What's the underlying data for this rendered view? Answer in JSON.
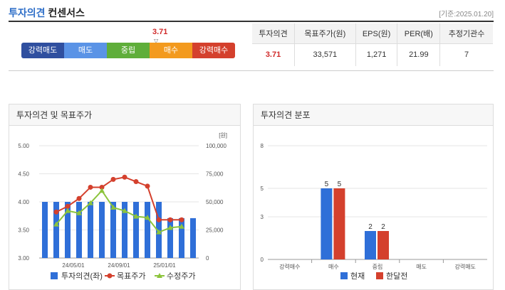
{
  "header": {
    "title_blue": "투자의견",
    "title_rest": "컨센서스",
    "date": "[기준:2025.01.20]"
  },
  "scale": {
    "value": "3.71",
    "pointer": "▽",
    "segments": [
      {
        "label": "강력매도",
        "color": "#2f4f9f"
      },
      {
        "label": "매도",
        "color": "#5a93e6"
      },
      {
        "label": "중립",
        "color": "#5fae3a"
      },
      {
        "label": "매수",
        "color": "#f39a1e"
      },
      {
        "label": "강력매수",
        "color": "#d4402d"
      }
    ]
  },
  "consensus_table": {
    "headers": [
      "투자의견",
      "목표주가(원)",
      "EPS(원)",
      "PER(배)",
      "추정기관수"
    ],
    "values": [
      "3.71",
      "33,571",
      "1,271",
      "21.99",
      "7"
    ]
  },
  "panels": {
    "left_title": "투자의견 및 목표주가",
    "right_title": "투자의견 분포"
  },
  "chart_data": [
    {
      "type": "bar",
      "left_axis": {
        "ticks": [
          "5.00",
          "4.50",
          "4.00",
          "3.50",
          "3.00"
        ],
        "ylim": [
          3.0,
          5.0
        ]
      },
      "right_axis": {
        "unit": "[원]",
        "ticks": [
          "100,000",
          "75,000",
          "50,000",
          "25,000",
          "0"
        ],
        "ylim": [
          0,
          100000
        ]
      },
      "x_tick_labels": [
        "24/05/01",
        "24/09/01",
        "25/01/01"
      ],
      "series": [
        {
          "name": "투자의견(좌)",
          "type": "bar",
          "axis": "left",
          "color": "#2f6fd8",
          "values": [
            4.0,
            4.0,
            4.0,
            4.0,
            4.0,
            4.0,
            4.0,
            4.0,
            4.0,
            4.0,
            4.0,
            3.71,
            3.71,
            3.71
          ]
        },
        {
          "name": "목표주가",
          "type": "line",
          "axis": "right",
          "color": "#d4402d",
          "points": [
            [
              1,
              41000
            ],
            [
              2,
              46000
            ],
            [
              3,
              53000
            ],
            [
              4,
              63000
            ],
            [
              5,
              63000
            ],
            [
              6,
              70000
            ],
            [
              7,
              72000
            ],
            [
              8,
              68000
            ],
            [
              9,
              64000
            ],
            [
              10,
              34000
            ],
            [
              11,
              34000
            ],
            [
              12,
              34000
            ]
          ]
        },
        {
          "name": "수정주가",
          "type": "line",
          "axis": "right",
          "color": "#8cc43c",
          "points": [
            [
              1,
              30000
            ],
            [
              2,
              42000
            ],
            [
              3,
              40000
            ],
            [
              4,
              49000
            ],
            [
              5,
              60000
            ],
            [
              6,
              45000
            ],
            [
              7,
              42000
            ],
            [
              8,
              37000
            ],
            [
              9,
              36000
            ],
            [
              10,
              23000
            ],
            [
              11,
              27000
            ],
            [
              12,
              28000
            ]
          ]
        }
      ]
    },
    {
      "type": "bar",
      "categories": [
        "강력매수",
        "매수",
        "중립",
        "매도",
        "강력매도"
      ],
      "y_ticks": [
        "8",
        "5",
        "3",
        "0"
      ],
      "ylim": [
        0,
        8
      ],
      "series": [
        {
          "name": "현재",
          "color": "#2f6fd8",
          "values": [
            0,
            5,
            2,
            0,
            0
          ]
        },
        {
          "name": "한달전",
          "color": "#d4402d",
          "values": [
            0,
            5,
            2,
            0,
            0
          ]
        }
      ]
    }
  ]
}
